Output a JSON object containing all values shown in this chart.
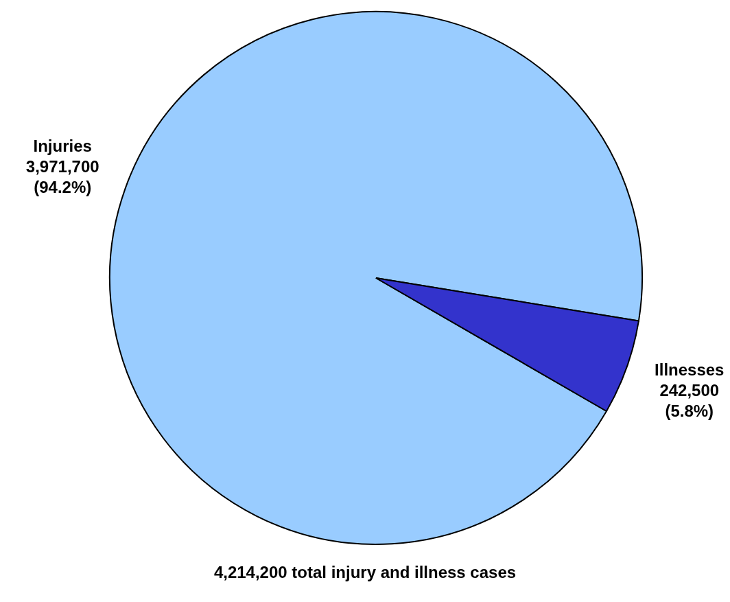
{
  "chart_data": {
    "type": "pie",
    "title": "4,214,200 total injury and illness cases",
    "categories": [
      "Injuries",
      "Illnesses"
    ],
    "values": [
      3971700,
      242500
    ],
    "colors": [
      "#99ccff",
      "#3333cc"
    ],
    "value_labels": [
      "3,971,700\n(94.2%)",
      "242,500\n(5.8%)"
    ],
    "legend": false
  }
}
